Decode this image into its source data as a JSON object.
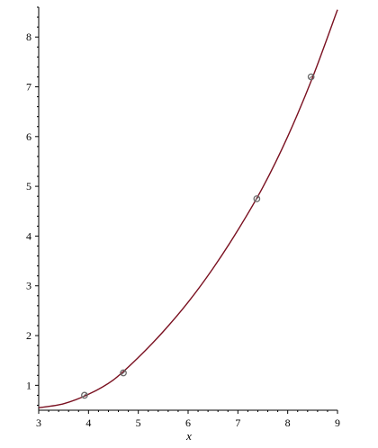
{
  "chart_data": {
    "type": "line",
    "title": "",
    "xlabel": "x",
    "ylabel": "",
    "xlim": [
      3,
      9
    ],
    "ylim": [
      0.5,
      8.6
    ],
    "grid": false,
    "legend": "none",
    "x_ticks": [
      3,
      4,
      5,
      6,
      7,
      8,
      9
    ],
    "y_ticks": [
      1,
      2,
      3,
      4,
      5,
      6,
      7,
      8
    ],
    "curve_color": "#7a1020",
    "marker_color": "#6b6b6b",
    "series": [
      {
        "type": "line",
        "x": [
          3.0,
          3.5,
          4.0,
          4.5,
          5.0,
          5.5,
          6.0,
          6.5,
          7.0,
          7.5,
          8.0,
          8.5,
          9.0
        ],
        "y": [
          0.55,
          0.63,
          0.82,
          1.11,
          1.56,
          2.08,
          2.67,
          3.35,
          4.12,
          4.98,
          6.0,
          7.19,
          8.55
        ]
      },
      {
        "type": "scatter",
        "x": [
          3.92,
          4.7,
          7.38,
          8.47
        ],
        "y": [
          0.8,
          1.25,
          4.75,
          7.2
        ]
      }
    ]
  }
}
